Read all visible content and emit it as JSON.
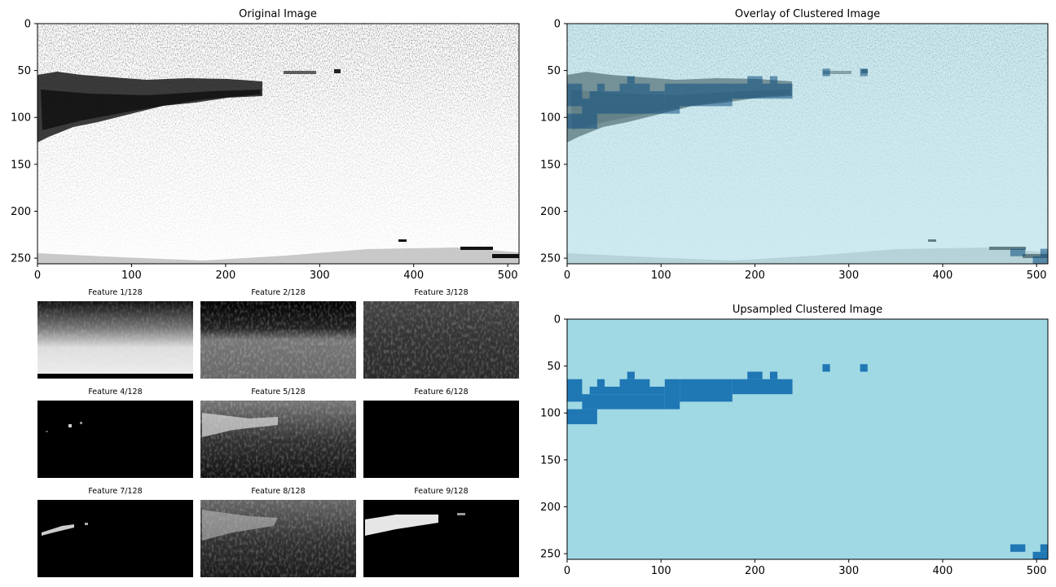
{
  "panels": {
    "original": {
      "title": "Original Image",
      "xticks": [
        "0",
        "100",
        "200",
        "300",
        "400",
        "500"
      ],
      "yticks": [
        "0",
        "50",
        "100",
        "150",
        "200",
        "250"
      ]
    },
    "overlay": {
      "title": "Overlay of Clustered Image",
      "xticks": [
        "0",
        "100",
        "200",
        "300",
        "400",
        "500"
      ],
      "yticks": [
        "0",
        "50",
        "100",
        "150",
        "200",
        "250"
      ],
      "overlay_color": "#a6dbe6"
    },
    "upsampled": {
      "title": "Upsampled Clustered Image",
      "xticks": [
        "0",
        "100",
        "200",
        "300",
        "400",
        "500"
      ],
      "yticks": [
        "0",
        "50",
        "100",
        "150",
        "200",
        "250"
      ],
      "background_color": "#a0d9e4",
      "cluster_color": "#1f77b4"
    }
  },
  "features": [
    {
      "label": "Feature 1/128"
    },
    {
      "label": "Feature 2/128"
    },
    {
      "label": "Feature 3/128"
    },
    {
      "label": "Feature 4/128"
    },
    {
      "label": "Feature 5/128"
    },
    {
      "label": "Feature 6/128"
    },
    {
      "label": "Feature 7/128"
    },
    {
      "label": "Feature 8/128"
    },
    {
      "label": "Feature 9/128"
    }
  ],
  "chart_data": [
    {
      "type": "heatmap",
      "title": "Original Image",
      "xlim": [
        0,
        512
      ],
      "ylim": [
        256,
        0
      ],
      "xticks": [
        0,
        100,
        200,
        300,
        400,
        500
      ],
      "yticks": [
        0,
        50,
        100,
        150,
        200,
        250
      ],
      "colormap": "gray_r"
    },
    {
      "type": "heatmap",
      "title": "Overlay of Clustered Image",
      "xlim": [
        0,
        512
      ],
      "ylim": [
        256,
        0
      ],
      "xticks": [
        0,
        100,
        200,
        300,
        400,
        500
      ],
      "yticks": [
        0,
        50,
        100,
        150,
        200,
        250
      ]
    },
    {
      "type": "heatmap",
      "title": "Upsampled Clustered Image",
      "xlim": [
        0,
        512
      ],
      "ylim": [
        256,
        0
      ],
      "xticks": [
        0,
        100,
        200,
        300,
        400,
        500
      ],
      "yticks": [
        0,
        50,
        100,
        150,
        200,
        250
      ],
      "clusters": 2,
      "cluster1_blocks": [
        {
          "x0": 0,
          "x1": 16,
          "y0": 64,
          "y1": 88
        },
        {
          "x0": 0,
          "x1": 32,
          "y0": 96,
          "y1": 112
        },
        {
          "x0": 16,
          "x1": 104,
          "y0": 80,
          "y1": 96
        },
        {
          "x0": 24,
          "x1": 104,
          "y0": 72,
          "y1": 80
        },
        {
          "x0": 32,
          "x1": 40,
          "y0": 64,
          "y1": 72
        },
        {
          "x0": 56,
          "x1": 88,
          "y0": 64,
          "y1": 72
        },
        {
          "x0": 64,
          "x1": 72,
          "y0": 56,
          "y1": 64
        },
        {
          "x0": 104,
          "x1": 120,
          "y0": 64,
          "y1": 96
        },
        {
          "x0": 120,
          "x1": 176,
          "y0": 64,
          "y1": 88
        },
        {
          "x0": 176,
          "x1": 240,
          "y0": 64,
          "y1": 80
        },
        {
          "x0": 192,
          "x1": 208,
          "y0": 56,
          "y1": 64
        },
        {
          "x0": 216,
          "x1": 224,
          "y0": 56,
          "y1": 64
        },
        {
          "x0": 272,
          "x1": 280,
          "y0": 48,
          "y1": 56
        },
        {
          "x0": 312,
          "x1": 320,
          "y0": 48,
          "y1": 56
        },
        {
          "x0": 472,
          "x1": 488,
          "y0": 240,
          "y1": 248
        },
        {
          "x0": 496,
          "x1": 512,
          "y0": 248,
          "y1": 256
        },
        {
          "x0": 504,
          "x1": 512,
          "y0": 240,
          "y1": 248
        }
      ]
    }
  ]
}
